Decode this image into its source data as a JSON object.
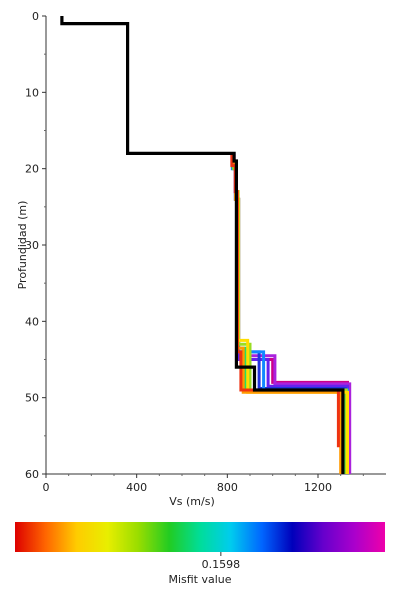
{
  "chart_data": {
    "type": "line",
    "xlabel": "Vs (m/s)",
    "ylabel": "Profundidad (m)",
    "xlim": [
      0,
      1500
    ],
    "ylim": [
      0,
      60
    ],
    "y_inverted": true,
    "x_ticks": [
      0,
      400,
      800,
      1200
    ],
    "y_ticks": [
      0,
      10,
      20,
      30,
      40,
      50,
      60
    ],
    "grid": false,
    "best_model": {
      "name": "",
      "color": "#000000",
      "vs": [
        70,
        70,
        360,
        360,
        830,
        830,
        840,
        840,
        840,
        920,
        920,
        1310,
        1310
      ],
      "depth": [
        0,
        1,
        1,
        18,
        18,
        19,
        19,
        46,
        46,
        46,
        49,
        49,
        60
      ]
    },
    "ensemble": [
      {
        "color": "#cc0088",
        "vs": [
          820,
          820,
          835,
          835,
          845,
          845,
          1000,
          1000,
          1330,
          1330
        ],
        "depth": [
          18,
          19.5,
          19.5,
          23,
          23,
          45,
          45,
          48,
          48,
          56
        ]
      },
      {
        "color": "#aa22dd",
        "vs": [
          830,
          830,
          840,
          840,
          850,
          850,
          1010,
          1010,
          1340,
          1340
        ],
        "depth": [
          18,
          20,
          20,
          24,
          24,
          44.5,
          44.5,
          48.2,
          48.2,
          60
        ]
      },
      {
        "color": "#6622ee",
        "vs": [
          825,
          825,
          840,
          840,
          848,
          848,
          980,
          980,
          1330,
          1330
        ],
        "depth": [
          18,
          19,
          19,
          24,
          24,
          45,
          45,
          48.5,
          48.5,
          60
        ]
      },
      {
        "color": "#2233dd",
        "vs": [
          825,
          825,
          835,
          835,
          845,
          845,
          940,
          940,
          1320,
          1320
        ],
        "depth": [
          18,
          19.5,
          19.5,
          24,
          24,
          44,
          44,
          48.8,
          48.8,
          60
        ]
      },
      {
        "color": "#1188ff",
        "vs": [
          822,
          822,
          838,
          838,
          846,
          846,
          960,
          960,
          1330,
          1330
        ],
        "depth": [
          18,
          20,
          20,
          23,
          23,
          44,
          44,
          49,
          49,
          60
        ]
      },
      {
        "color": "#00cccc",
        "vs": [
          823,
          823,
          837,
          837,
          845,
          845,
          900,
          900,
          1320,
          1320
        ],
        "depth": [
          18,
          19,
          19,
          24,
          24,
          44,
          44,
          49,
          49,
          60
        ]
      },
      {
        "color": "#22dd66",
        "vs": [
          826,
          826,
          836,
          836,
          848,
          848,
          880,
          880,
          1315,
          1315
        ],
        "depth": [
          18,
          19.8,
          19.8,
          23,
          23,
          43.5,
          43.5,
          49.2,
          49.2,
          60
        ]
      },
      {
        "color": "#99dd22",
        "vs": [
          828,
          828,
          838,
          838,
          850,
          850,
          900,
          900,
          1325,
          1325
        ],
        "depth": [
          18,
          20,
          20,
          24,
          24,
          43,
          43,
          49,
          49,
          60
        ]
      },
      {
        "color": "#ffdd00",
        "vs": [
          824,
          824,
          840,
          840,
          847,
          847,
          890,
          890,
          1330,
          1330
        ],
        "depth": [
          18,
          19,
          19,
          23,
          23,
          42.5,
          42.5,
          49.3,
          49.3,
          60
        ]
      },
      {
        "color": "#ff9900",
        "vs": [
          822,
          822,
          836,
          836,
          845,
          845,
          870,
          870,
          1300,
          1300
        ],
        "depth": [
          18,
          19.4,
          19.4,
          24,
          24,
          43.5,
          43.5,
          49.3,
          49.3,
          60
        ]
      },
      {
        "color": "#ee3311",
        "vs": [
          820,
          820,
          835,
          835,
          844,
          844,
          860,
          860,
          1290,
          1290
        ],
        "depth": [
          18,
          19.6,
          19.6,
          23,
          23,
          44,
          44,
          49,
          49,
          56.5
        ]
      }
    ]
  },
  "colorbar": {
    "stops": [
      "#dd0000",
      "#ff6600",
      "#ffcc00",
      "#e8ee00",
      "#99dd00",
      "#22cc22",
      "#00dd99",
      "#00ccee",
      "#0066ff",
      "#0000bb",
      "#6600cc",
      "#aa00cc",
      "#ee00aa"
    ],
    "tick_value": 0.1598,
    "tick_label": "0.1598",
    "range": [
      0.1445,
      0.172
    ],
    "title": "Misfit value"
  }
}
